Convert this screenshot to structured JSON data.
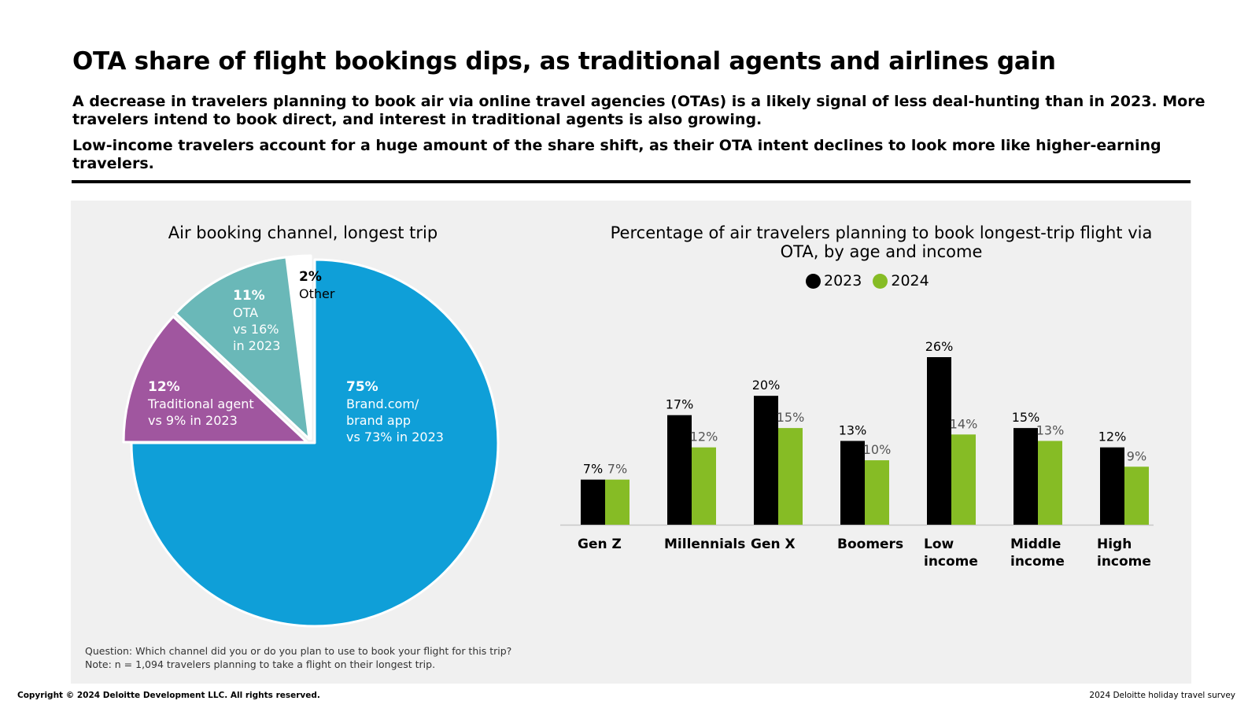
{
  "header": {
    "title": "OTA share of flight bookings dips, as traditional agents and airlines gain",
    "subtitle1": "A decrease in travelers planning to book air via online travel agencies (OTAs) is a likely signal of less deal-hunting than in 2023. More travelers intend to book direct, and interest in traditional agents is also growing.",
    "subtitle2": "Low-income travelers account for a huge amount of the share shift, as their OTA intent declines to look more like higher-earning travelers."
  },
  "notes": {
    "question": "Question: Which channel did you or do you plan to use to book your flight for this trip?",
    "note": "Note: n = 1,094 travelers planning to take a flight on their longest trip."
  },
  "footer": {
    "copyright": "Copyright © 2024 Deloitte Development LLC. All rights reserved.",
    "source": "2024 Deloitte holiday travel survey"
  },
  "chart_data": [
    {
      "type": "pie",
      "title": "Air booking channel, longest trip",
      "slices": [
        {
          "pct_label": "75%",
          "label_lines": [
            "Brand.com/",
            "brand app"
          ],
          "note": "vs 73% in 2023",
          "value": 75,
          "color": "#0f9fd8"
        },
        {
          "pct_label": "12%",
          "label_lines": [
            "Traditional agent"
          ],
          "note": "vs 9% in 2023",
          "value": 12,
          "color": "#a0569f"
        },
        {
          "pct_label": "11%",
          "label_lines": [
            "OTA"
          ],
          "note_lines": [
            "vs 16%",
            "in 2023"
          ],
          "value": 11,
          "color": "#6ab8b8"
        },
        {
          "pct_label": "2%",
          "label_lines": [
            "Other"
          ],
          "value": 2,
          "color": "#ffffff"
        }
      ]
    },
    {
      "type": "bar",
      "title": "Percentage of air travelers planning to book longest-trip flight via OTA, by age and income",
      "categories": [
        [
          "Gen Z"
        ],
        [
          "Millennials"
        ],
        [
          "Gen X"
        ],
        [
          "Boomers"
        ],
        [
          "Low",
          "income"
        ],
        [
          "Middle",
          "income"
        ],
        [
          "High",
          "income"
        ]
      ],
      "series": [
        {
          "name": "2023",
          "color": "#000000",
          "values": [
            7,
            17,
            20,
            13,
            26,
            15,
            12
          ],
          "labels": [
            "7%",
            "17%",
            "20%",
            "13%",
            "26%",
            "15%",
            "12%"
          ]
        },
        {
          "name": "2024",
          "color": "#86bc25",
          "values": [
            7,
            12,
            15,
            10,
            14,
            13,
            9
          ],
          "labels": [
            "7%",
            "12%",
            "15%",
            "10%",
            "14%",
            "13%",
            "9%"
          ]
        }
      ],
      "legend": "top-center",
      "grid": false
    }
  ]
}
